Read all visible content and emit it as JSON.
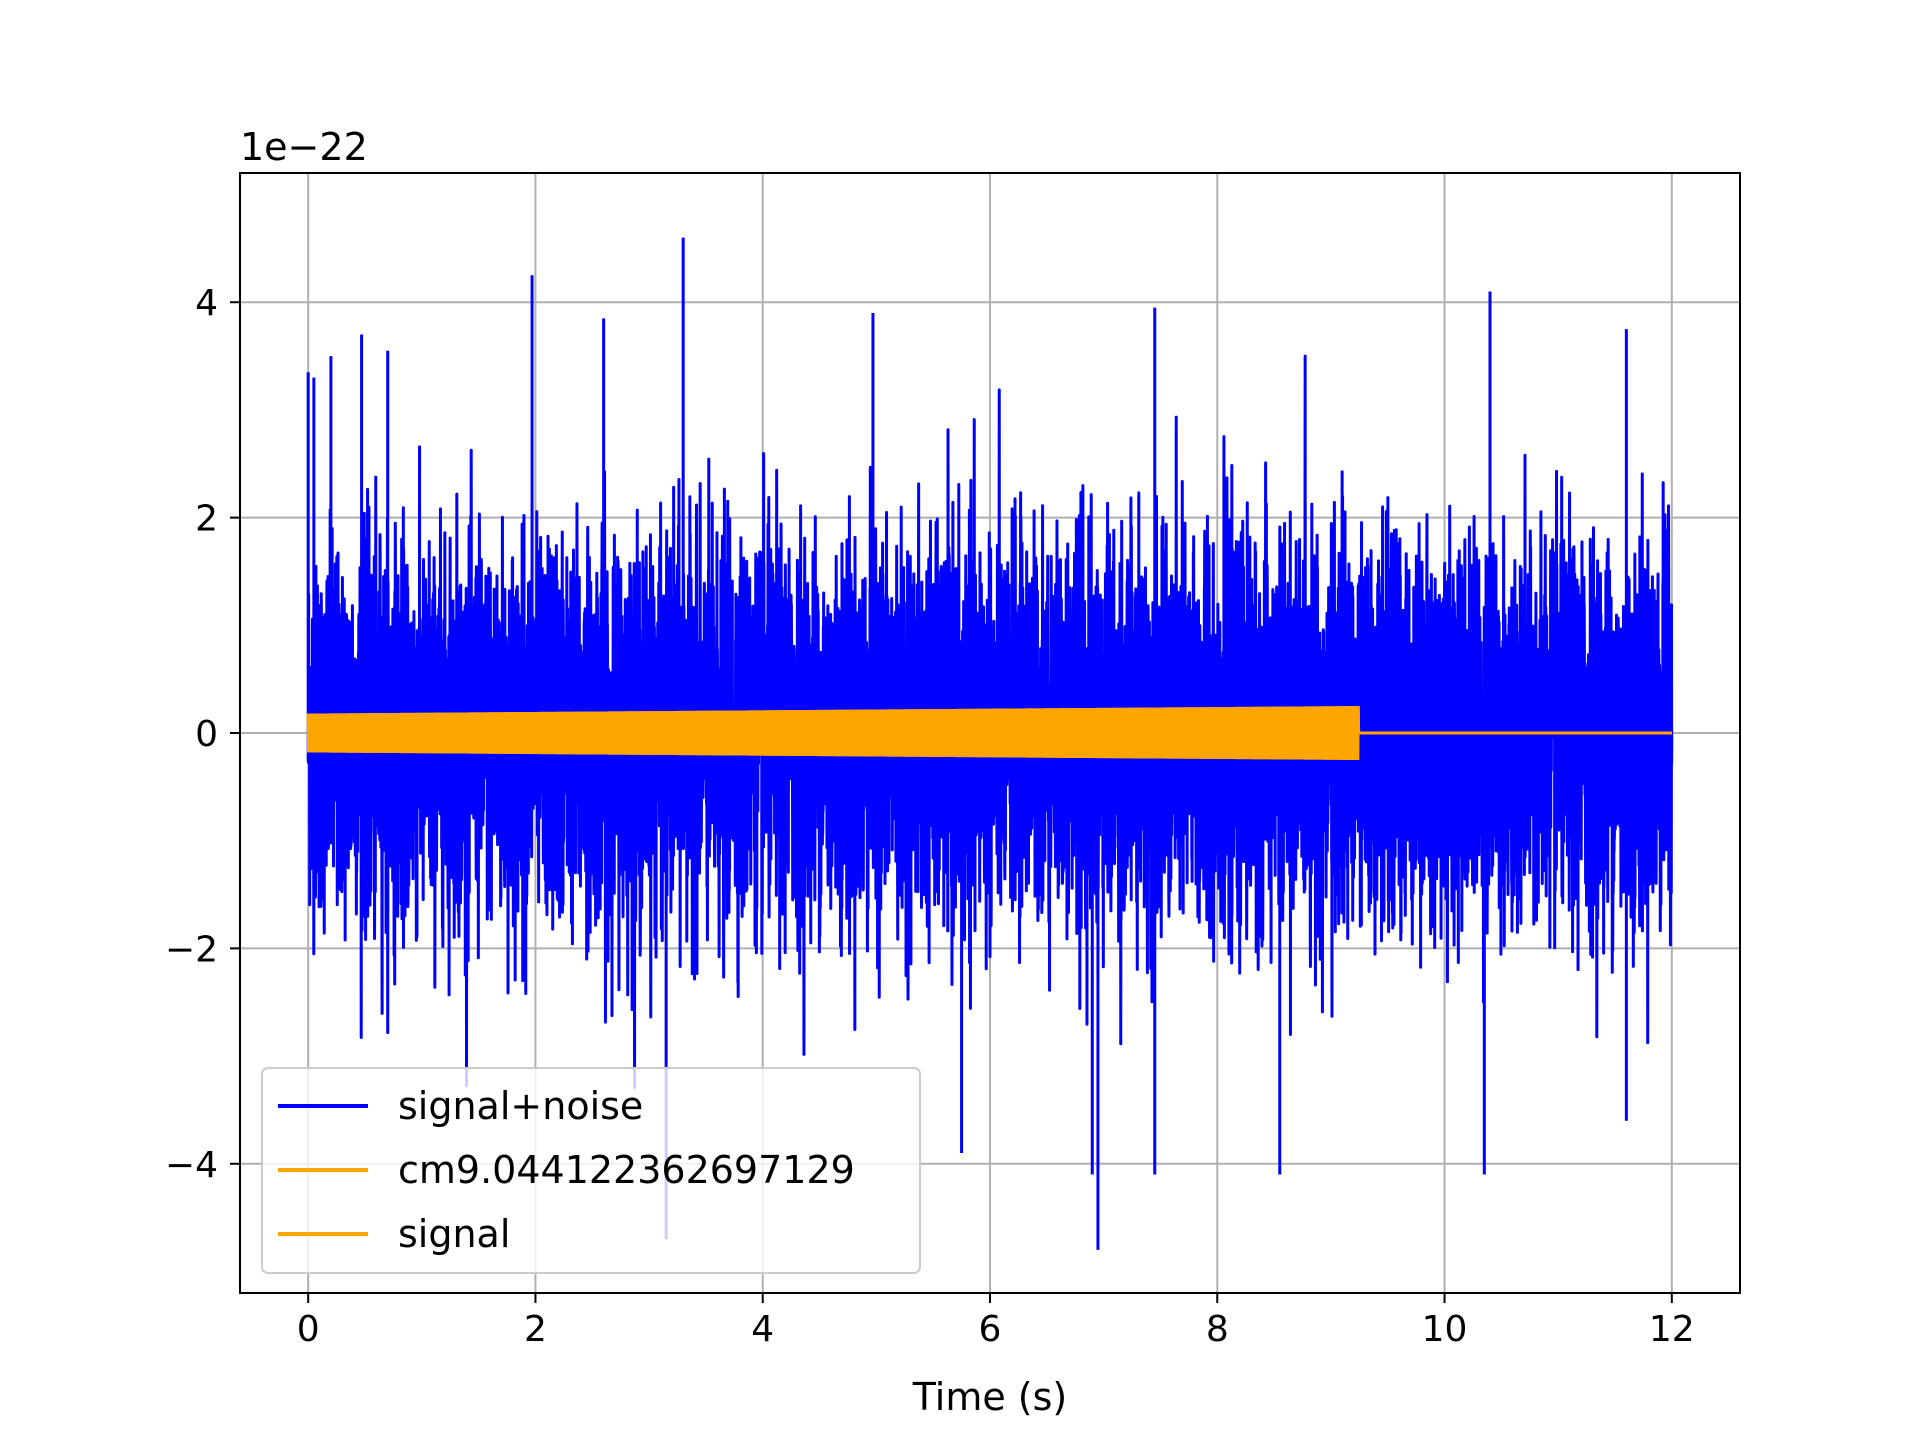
{
  "chart_data": {
    "type": "line",
    "title": "",
    "xlabel": "Time (s)",
    "ylabel": "",
    "y_offset_label": "1e−22",
    "xlim": [
      -0.6,
      12.6
    ],
    "ylim": [
      -5.2,
      5.2
    ],
    "x_ticks": [
      0,
      2,
      4,
      6,
      8,
      10,
      12
    ],
    "x_tick_labels": [
      "0",
      "2",
      "4",
      "6",
      "8",
      "10",
      "12"
    ],
    "y_ticks": [
      -4,
      -2,
      0,
      2,
      4
    ],
    "y_tick_labels": [
      "−4",
      "−2",
      "0",
      "2",
      "4"
    ],
    "grid": true,
    "legend_position": "lower-left",
    "colors": {
      "noise": "#0000ff",
      "signal": "#ffa500",
      "grid": "#b0b0b0"
    },
    "series": [
      {
        "name": "signal+noise",
        "color": "#0000ff",
        "x_range": [
          0,
          12
        ],
        "std_amplitude": 0.85,
        "extremes": [
          {
            "x": 0.0,
            "y": 3.35
          },
          {
            "x": 0.05,
            "y": 3.3
          },
          {
            "x": 0.2,
            "y": 3.5
          },
          {
            "x": 0.47,
            "y": 3.7
          },
          {
            "x": 0.7,
            "y": 3.55
          },
          {
            "x": 1.97,
            "y": 4.25
          },
          {
            "x": 2.6,
            "y": 3.85
          },
          {
            "x": 3.3,
            "y": 4.6
          },
          {
            "x": 4.97,
            "y": 3.9
          },
          {
            "x": 7.45,
            "y": 3.95
          },
          {
            "x": 10.4,
            "y": 4.1
          },
          {
            "x": 11.6,
            "y": 3.75
          },
          {
            "x": 3.15,
            "y": -4.7
          },
          {
            "x": 6.95,
            "y": -4.8
          },
          {
            "x": 6.9,
            "y": -4.1
          },
          {
            "x": 7.45,
            "y": -4.1
          },
          {
            "x": 8.55,
            "y": -4.1
          },
          {
            "x": 10.35,
            "y": -4.1
          },
          {
            "x": 5.75,
            "y": -3.9
          },
          {
            "x": 11.6,
            "y": -3.6
          }
        ]
      },
      {
        "name": "cm9.044122362697129",
        "color": "#ffa500",
        "x_range": [
          0,
          12
        ],
        "active_until": 9.24,
        "amplitude_start": 0.18,
        "amplitude_end": 0.25,
        "value_after": 0
      },
      {
        "name": "signal",
        "color": "#ffa500",
        "x_range": [
          0,
          12
        ],
        "active_until": 9.24,
        "amplitude_start": 0.18,
        "amplitude_end": 0.25,
        "value_after": 0
      }
    ]
  }
}
